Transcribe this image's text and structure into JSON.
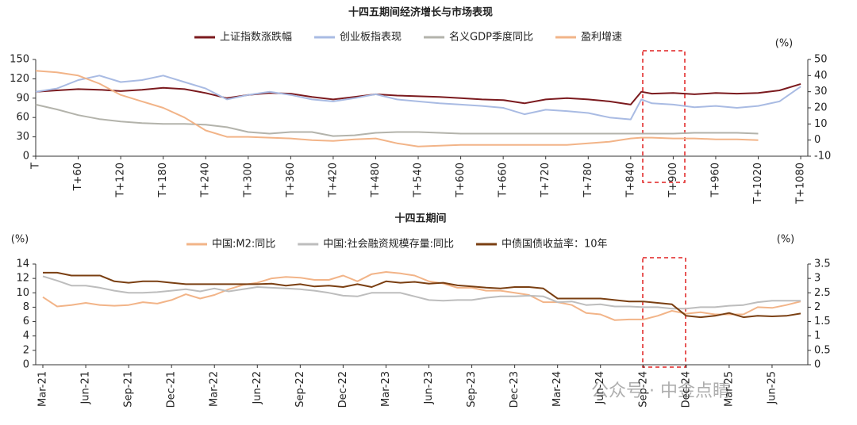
{
  "chart_data": [
    {
      "type": "line",
      "title": "十四五期间经济增长与市场表现",
      "x": [
        0,
        30,
        60,
        90,
        120,
        150,
        180,
        210,
        240,
        270,
        300,
        330,
        360,
        390,
        420,
        450,
        480,
        510,
        540,
        570,
        600,
        630,
        660,
        690,
        720,
        750,
        780,
        810,
        840,
        855,
        870,
        900,
        930,
        960,
        990,
        1020,
        1050,
        1080
      ],
      "xlim": [
        0,
        1090
      ],
      "xticks": [
        {
          "value": 0,
          "label": "T"
        },
        {
          "value": 60,
          "label": "T+60"
        },
        {
          "value": 120,
          "label": "T+120"
        },
        {
          "value": 180,
          "label": "T+180"
        },
        {
          "value": 240,
          "label": "T+240"
        },
        {
          "value": 300,
          "label": "T+300"
        },
        {
          "value": 360,
          "label": "T+360"
        },
        {
          "value": 420,
          "label": "T+420"
        },
        {
          "value": 480,
          "label": "T+480"
        },
        {
          "value": 540,
          "label": "T+540"
        },
        {
          "value": 600,
          "label": "T+600"
        },
        {
          "value": 660,
          "label": "T+660"
        },
        {
          "value": 720,
          "label": "T+720"
        },
        {
          "value": 780,
          "label": "T+780"
        },
        {
          "value": 840,
          "label": "T+840"
        },
        {
          "value": 900,
          "label": "T+900"
        },
        {
          "value": 960,
          "label": "T+960"
        },
        {
          "value": 1020,
          "label": "T+1020"
        },
        {
          "value": 1080,
          "label": "T+1080"
        }
      ],
      "ylim": [
        0,
        150
      ],
      "yticks": [
        0,
        30,
        60,
        90,
        120,
        150
      ],
      "y2lim": [
        -10,
        50
      ],
      "y2ticks": [
        -10,
        0,
        10,
        20,
        30,
        40,
        50
      ],
      "y2_label": "(%)",
      "series": [
        {
          "name": "上证指数涨跌幅",
          "color": "#7b1a1e",
          "values": [
            100,
            102,
            104,
            103,
            101,
            103,
            106,
            104,
            98,
            90,
            95,
            98,
            97,
            92,
            88,
            92,
            96,
            94,
            93,
            92,
            90,
            88,
            87,
            82,
            88,
            90,
            88,
            85,
            80,
            100,
            97,
            98,
            96,
            98,
            97,
            98,
            102,
            112
          ]
        },
        {
          "name": "创业板指表现",
          "color": "#a9bbe3",
          "values": [
            100,
            105,
            118,
            125,
            115,
            118,
            125,
            115,
            105,
            88,
            95,
            100,
            95,
            88,
            85,
            90,
            96,
            88,
            85,
            82,
            80,
            78,
            75,
            65,
            72,
            70,
            67,
            60,
            57,
            88,
            82,
            80,
            76,
            78,
            75,
            78,
            85,
            108
          ]
        },
        {
          "name": "名义GDP季度同比",
          "color": "#b3b3ab",
          "axis": "y2",
          "values": [
            22,
            19,
            15.5,
            13,
            11.5,
            10.5,
            10,
            10,
            9.5,
            8,
            5,
            4,
            5,
            5,
            2.5,
            3,
            4.5,
            5,
            5,
            4.5,
            4,
            4,
            4,
            4,
            4,
            4,
            4,
            4,
            4,
            4,
            4,
            4,
            4.5,
            4.5,
            4.5,
            4,
            null,
            null
          ]
        },
        {
          "name": "盈利增速",
          "color": "#f2b488",
          "axis": "y2",
          "values": [
            43,
            42,
            40,
            35,
            28,
            24,
            20,
            14,
            6,
            2,
            2,
            1.5,
            1,
            0,
            -0.5,
            0.5,
            1,
            -2,
            -4,
            -3.5,
            -3,
            -3,
            -3,
            -3,
            -3,
            -3,
            -2,
            -1,
            1,
            1.5,
            1.5,
            1,
            1,
            0.5,
            0.5,
            0,
            null,
            null
          ]
        }
      ]
    },
    {
      "type": "line",
      "title": "十四五期间",
      "categories": [
        "Mar-21",
        null,
        null,
        "Jun-21",
        null,
        null,
        "Sep-21",
        null,
        null,
        "Dec-21",
        null,
        null,
        "Mar-22",
        null,
        null,
        "Jun-22",
        null,
        null,
        "Sep-22",
        null,
        null,
        "Dec-22",
        null,
        null,
        "Mar-23",
        null,
        null,
        "Jun-23",
        null,
        null,
        "Sep-23",
        null,
        null,
        "Dec-23",
        null,
        null,
        "Mar-24",
        null,
        null,
        "Jun-24",
        null,
        null,
        "Sep-24",
        null,
        null,
        "Dec-24",
        null,
        null,
        "Mar-25",
        null,
        null,
        "Jun-25",
        null,
        null
      ],
      "ylim": [
        0,
        14
      ],
      "yticks": [
        0,
        2,
        4,
        6,
        8,
        10,
        12,
        14
      ],
      "y_label": "(%)",
      "y2lim": [
        0,
        3.5
      ],
      "y2ticks": [
        0,
        0.5,
        1,
        1.5,
        2,
        2.5,
        3,
        3.5
      ],
      "y2_label": "(%)",
      "series": [
        {
          "name": "中国:M2:同比",
          "color": "#f2b488",
          "values": [
            9.4,
            8.1,
            8.3,
            8.6,
            8.3,
            8.2,
            8.3,
            8.7,
            8.5,
            9.0,
            9.8,
            9.2,
            9.7,
            10.5,
            11.1,
            11.4,
            12.0,
            12.2,
            12.1,
            11.8,
            11.8,
            12.4,
            11.6,
            12.6,
            12.9,
            12.7,
            12.4,
            11.6,
            11.3,
            10.7,
            10.7,
            10.3,
            10.3,
            10.0,
            9.7,
            8.7,
            8.7,
            8.3,
            7.2,
            7.0,
            6.2,
            6.3,
            6.3,
            6.8,
            7.5,
            7.1,
            7.3,
            7.0,
            7.0,
            7.0,
            8.0,
            7.9,
            8.3,
            8.8
          ]
        },
        {
          "name": "中国:社会融资规模存量:同比",
          "color": "#bdbdbd",
          "values": [
            12.3,
            11.7,
            11.0,
            11.0,
            10.7,
            10.3,
            10.0,
            10.0,
            10.1,
            10.3,
            10.5,
            10.2,
            10.6,
            10.2,
            10.5,
            10.8,
            10.7,
            10.6,
            10.5,
            10.3,
            10.0,
            9.6,
            9.5,
            10.0,
            10.0,
            10.0,
            9.5,
            9.0,
            8.9,
            9.0,
            9.0,
            9.3,
            9.5,
            9.5,
            9.6,
            9.5,
            8.7,
            8.8,
            8.3,
            8.4,
            8.1,
            8.1,
            8.0,
            8.0,
            7.8,
            7.8,
            8.0,
            8.0,
            8.2,
            8.3,
            8.7,
            8.9,
            8.9,
            8.9
          ]
        },
        {
          "name": "中债国债收益率：10年",
          "color": "#7a3f12",
          "axis": "y2",
          "values": [
            3.2,
            3.2,
            3.1,
            3.1,
            3.1,
            2.9,
            2.85,
            2.9,
            2.9,
            2.85,
            2.8,
            2.8,
            2.8,
            2.8,
            2.8,
            2.8,
            2.82,
            2.75,
            2.8,
            2.72,
            2.75,
            2.7,
            2.8,
            2.7,
            2.9,
            2.85,
            2.88,
            2.82,
            2.85,
            2.76,
            2.72,
            2.68,
            2.65,
            2.7,
            2.7,
            2.65,
            2.3,
            2.3,
            2.3,
            2.3,
            2.25,
            2.2,
            2.2,
            2.15,
            2.1,
            1.7,
            1.65,
            1.7,
            1.8,
            1.65,
            1.7,
            1.68,
            1.7,
            1.78
          ]
        }
      ]
    }
  ],
  "watermark": "公众号 · 中金点睛"
}
